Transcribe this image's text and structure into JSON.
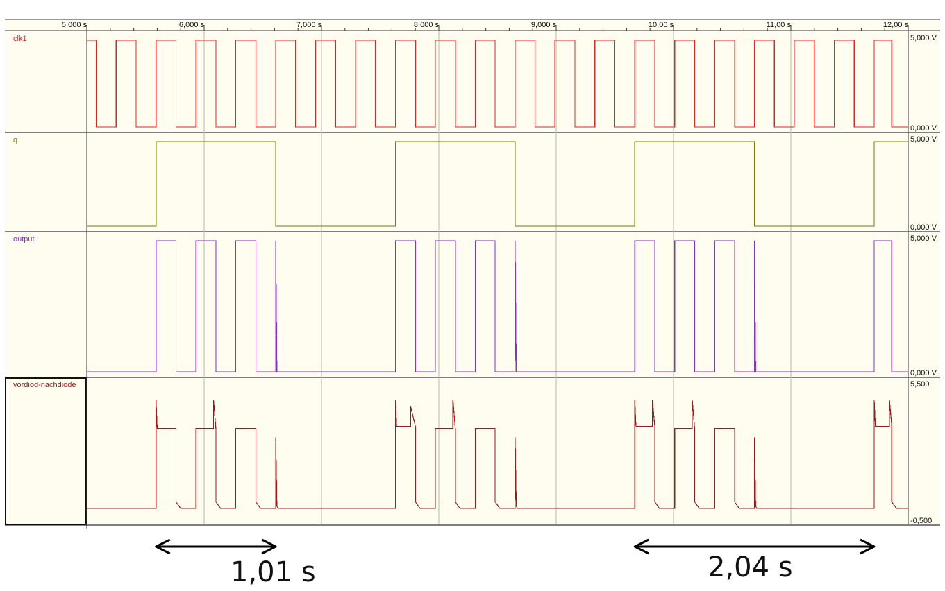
{
  "colors": {
    "panel_bg": "#fffdf0",
    "strip_bg": "#fffdf0",
    "grid": "#b9b7a8",
    "axis": "#333333"
  },
  "time_axis": {
    "labels": [
      "5,000 s",
      "6,000 s",
      "7,000 s",
      "8,000 s",
      "9,000 s",
      "10,00 s",
      "11,00 s",
      "12,00 s"
    ]
  },
  "chart_data": {
    "type": "line",
    "x_unit": "s",
    "xlim": [
      5.0,
      12.0
    ],
    "grid_x": [
      5,
      6,
      7,
      8,
      9,
      10,
      11,
      12
    ],
    "series": [
      {
        "name": "clk1",
        "color": "#e8231f",
        "scale_top": "5,000 V",
        "scale_bottom": "0,000 V",
        "ylim": [
          0,
          5
        ],
        "points": [
          [
            5.0,
            5
          ],
          [
            5.08,
            5
          ],
          [
            5.08,
            0
          ],
          [
            5.25,
            0
          ],
          [
            5.25,
            5
          ],
          [
            5.42,
            5
          ],
          [
            5.42,
            0
          ],
          [
            5.59,
            0
          ],
          [
            5.59,
            5
          ],
          [
            5.76,
            5
          ],
          [
            5.76,
            0
          ],
          [
            5.93,
            0
          ],
          [
            5.93,
            5
          ],
          [
            6.1,
            5
          ],
          [
            6.1,
            0
          ],
          [
            6.27,
            0
          ],
          [
            6.27,
            5
          ],
          [
            6.44,
            5
          ],
          [
            6.44,
            0
          ],
          [
            6.61,
            0
          ],
          [
            6.61,
            5
          ],
          [
            6.78,
            5
          ],
          [
            6.78,
            0
          ],
          [
            6.95,
            0
          ],
          [
            6.95,
            5
          ],
          [
            7.12,
            5
          ],
          [
            7.12,
            0
          ],
          [
            7.29,
            0
          ],
          [
            7.29,
            5
          ],
          [
            7.46,
            5
          ],
          [
            7.46,
            0
          ],
          [
            7.63,
            0
          ],
          [
            7.63,
            5
          ],
          [
            7.8,
            5
          ],
          [
            7.8,
            0
          ],
          [
            7.97,
            0
          ],
          [
            7.97,
            5
          ],
          [
            8.14,
            5
          ],
          [
            8.14,
            0
          ],
          [
            8.31,
            0
          ],
          [
            8.31,
            5
          ],
          [
            8.48,
            5
          ],
          [
            8.48,
            0
          ],
          [
            8.65,
            0
          ],
          [
            8.65,
            5
          ],
          [
            8.82,
            5
          ],
          [
            8.82,
            0
          ],
          [
            8.99,
            0
          ],
          [
            8.99,
            5
          ],
          [
            9.16,
            5
          ],
          [
            9.16,
            0
          ],
          [
            9.33,
            0
          ],
          [
            9.33,
            5
          ],
          [
            9.5,
            5
          ],
          [
            9.5,
            0
          ],
          [
            9.67,
            0
          ],
          [
            9.67,
            5
          ],
          [
            9.84,
            5
          ],
          [
            9.84,
            0
          ],
          [
            10.01,
            0
          ],
          [
            10.01,
            5
          ],
          [
            10.18,
            5
          ],
          [
            10.18,
            0
          ],
          [
            10.35,
            0
          ],
          [
            10.35,
            5
          ],
          [
            10.52,
            5
          ],
          [
            10.52,
            0
          ],
          [
            10.69,
            0
          ],
          [
            10.69,
            5
          ],
          [
            10.86,
            5
          ],
          [
            10.86,
            0
          ],
          [
            11.03,
            0
          ],
          [
            11.03,
            5
          ],
          [
            11.2,
            5
          ],
          [
            11.2,
            0
          ],
          [
            11.37,
            0
          ],
          [
            11.37,
            5
          ],
          [
            11.54,
            5
          ],
          [
            11.54,
            0
          ],
          [
            11.71,
            0
          ],
          [
            11.71,
            5
          ],
          [
            11.86,
            5
          ],
          [
            11.86,
            0
          ],
          [
            12.0,
            0
          ]
        ]
      },
      {
        "name": "q",
        "color": "#7a7a00",
        "scale_top": "5,000 V",
        "scale_bottom": "0,000 V",
        "ylim": [
          0,
          5
        ],
        "points": [
          [
            5.0,
            0
          ],
          [
            5.59,
            0
          ],
          [
            5.59,
            5
          ],
          [
            6.61,
            5
          ],
          [
            6.61,
            0
          ],
          [
            7.63,
            0
          ],
          [
            7.63,
            5
          ],
          [
            8.65,
            5
          ],
          [
            8.65,
            0
          ],
          [
            9.67,
            0
          ],
          [
            9.67,
            5
          ],
          [
            10.69,
            5
          ],
          [
            10.69,
            0
          ],
          [
            11.71,
            0
          ],
          [
            11.71,
            5
          ],
          [
            12.0,
            5
          ]
        ]
      },
      {
        "name": "output",
        "color": "#8b2fc9",
        "scale_top": "5,000 V",
        "scale_bottom": "0,000 V",
        "ylim": [
          0,
          5
        ],
        "points": [
          [
            5.0,
            0
          ],
          [
            5.59,
            0
          ],
          [
            5.59,
            5
          ],
          [
            5.76,
            5
          ],
          [
            5.76,
            0
          ],
          [
            5.93,
            0
          ],
          [
            5.93,
            5
          ],
          [
            6.1,
            5
          ],
          [
            6.1,
            0
          ],
          [
            6.27,
            0
          ],
          [
            6.27,
            5
          ],
          [
            6.44,
            5
          ],
          [
            6.44,
            0
          ],
          [
            6.61,
            0
          ],
          [
            6.61,
            5
          ],
          [
            6.62,
            0
          ],
          [
            7.63,
            0
          ],
          [
            7.63,
            5
          ],
          [
            7.8,
            5
          ],
          [
            7.8,
            0
          ],
          [
            7.97,
            0
          ],
          [
            7.97,
            5
          ],
          [
            8.14,
            5
          ],
          [
            8.14,
            0
          ],
          [
            8.31,
            0
          ],
          [
            8.31,
            5
          ],
          [
            8.48,
            5
          ],
          [
            8.48,
            0
          ],
          [
            8.65,
            0
          ],
          [
            8.65,
            5
          ],
          [
            8.66,
            0
          ],
          [
            9.67,
            0
          ],
          [
            9.67,
            5
          ],
          [
            9.84,
            5
          ],
          [
            9.84,
            0
          ],
          [
            10.01,
            0
          ],
          [
            10.01,
            5
          ],
          [
            10.18,
            5
          ],
          [
            10.18,
            0
          ],
          [
            10.35,
            0
          ],
          [
            10.35,
            5
          ],
          [
            10.52,
            5
          ],
          [
            10.52,
            0
          ],
          [
            10.69,
            0
          ],
          [
            10.69,
            5
          ],
          [
            10.7,
            0
          ],
          [
            11.71,
            0
          ],
          [
            11.71,
            5
          ],
          [
            11.86,
            5
          ],
          [
            11.86,
            0
          ],
          [
            12.0,
            0
          ]
        ]
      },
      {
        "name": "vordiod-nachdiode",
        "color": "#a01818",
        "scale_top": "5,500",
        "scale_bottom": "-0,500",
        "ylim": [
          -0.5,
          5.5
        ],
        "points": [
          [
            5.0,
            0
          ],
          [
            5.59,
            0
          ],
          [
            5.59,
            4.9
          ],
          [
            5.6,
            3.6
          ],
          [
            5.76,
            3.6
          ],
          [
            5.76,
            0.3
          ],
          [
            5.8,
            0
          ],
          [
            5.93,
            0
          ],
          [
            5.93,
            3.6
          ],
          [
            6.08,
            3.6
          ],
          [
            6.08,
            4.9
          ],
          [
            6.1,
            3.6
          ],
          [
            6.1,
            0.3
          ],
          [
            6.14,
            0
          ],
          [
            6.27,
            0
          ],
          [
            6.27,
            3.6
          ],
          [
            6.44,
            3.6
          ],
          [
            6.44,
            0.3
          ],
          [
            6.48,
            0
          ],
          [
            6.61,
            0
          ],
          [
            6.61,
            3.2
          ],
          [
            6.62,
            0.1
          ],
          [
            6.63,
            0
          ],
          [
            7.63,
            0
          ],
          [
            7.63,
            4.9
          ],
          [
            7.64,
            3.7
          ],
          [
            7.76,
            3.7
          ],
          [
            7.76,
            4.6
          ],
          [
            7.8,
            3.7
          ],
          [
            7.8,
            0.3
          ],
          [
            7.84,
            0
          ],
          [
            7.97,
            0
          ],
          [
            7.97,
            3.6
          ],
          [
            8.12,
            3.6
          ],
          [
            8.12,
            4.9
          ],
          [
            8.14,
            3.6
          ],
          [
            8.14,
            0.3
          ],
          [
            8.18,
            0
          ],
          [
            8.31,
            0
          ],
          [
            8.31,
            3.6
          ],
          [
            8.48,
            3.6
          ],
          [
            8.48,
            0.3
          ],
          [
            8.52,
            0
          ],
          [
            8.65,
            0
          ],
          [
            8.65,
            3.2
          ],
          [
            8.66,
            0.1
          ],
          [
            8.67,
            0
          ],
          [
            9.67,
            0
          ],
          [
            9.67,
            4.9
          ],
          [
            9.68,
            3.7
          ],
          [
            9.82,
            3.7
          ],
          [
            9.82,
            4.9
          ],
          [
            9.84,
            3.7
          ],
          [
            9.84,
            0.3
          ],
          [
            9.88,
            0
          ],
          [
            10.01,
            0
          ],
          [
            10.01,
            3.6
          ],
          [
            10.16,
            3.6
          ],
          [
            10.16,
            4.9
          ],
          [
            10.18,
            3.6
          ],
          [
            10.18,
            0.3
          ],
          [
            10.22,
            0
          ],
          [
            10.35,
            0
          ],
          [
            10.35,
            3.6
          ],
          [
            10.52,
            3.6
          ],
          [
            10.52,
            0.3
          ],
          [
            10.56,
            0
          ],
          [
            10.69,
            0
          ],
          [
            10.69,
            3.2
          ],
          [
            10.7,
            0.1
          ],
          [
            10.71,
            0
          ],
          [
            11.71,
            0
          ],
          [
            11.71,
            4.9
          ],
          [
            11.72,
            3.7
          ],
          [
            11.84,
            3.7
          ],
          [
            11.84,
            4.9
          ],
          [
            11.86,
            3.7
          ],
          [
            11.86,
            0.3
          ],
          [
            11.9,
            0
          ],
          [
            12.0,
            0
          ]
        ]
      }
    ],
    "annotations": [
      {
        "label": "1,01 s",
        "from": 5.59,
        "to": 6.61
      },
      {
        "label": "2,04 s",
        "from": 9.67,
        "to": 11.71
      }
    ]
  }
}
